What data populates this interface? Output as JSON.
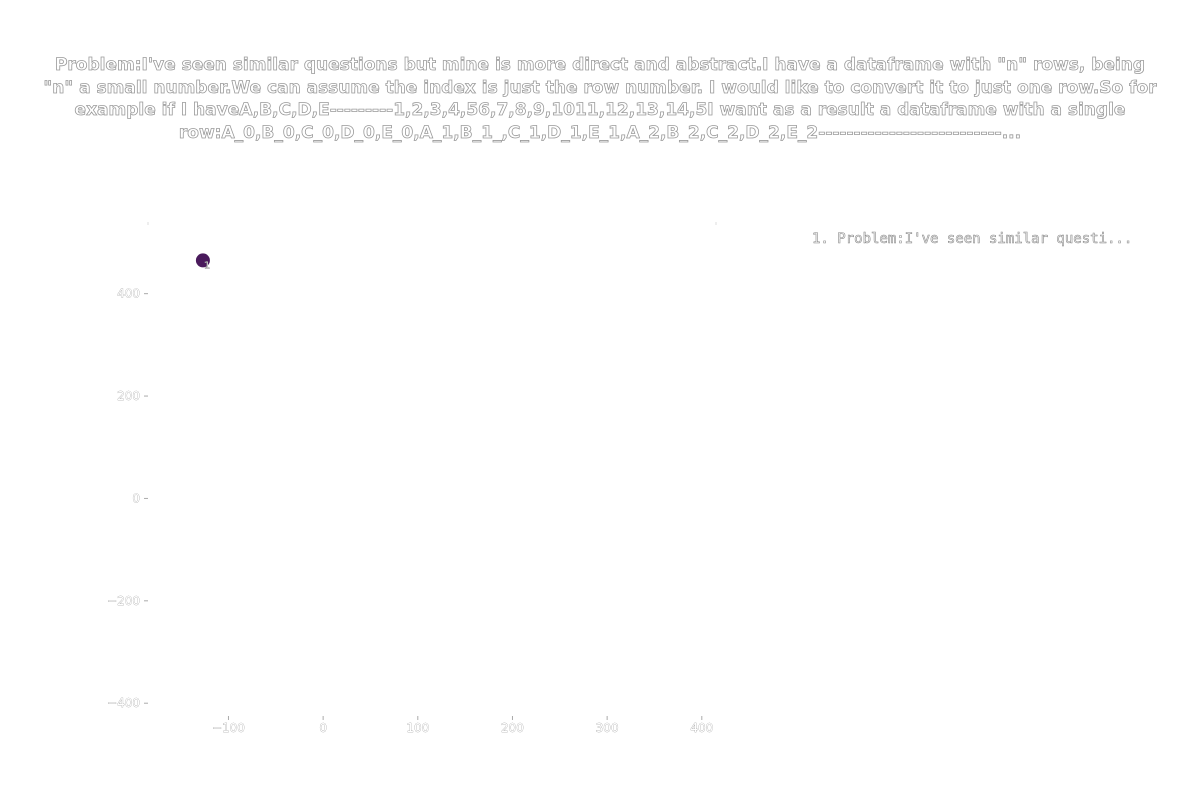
{
  "chart_data": {
    "type": "scatter",
    "title": "Problem:I've seen similar questions but mine is more direct and abstract.I have a dataframe with \"n\" rows, being \"n\" a small number.We can assume the index is just the row number. I would like to convert it to just one row.So for example if I haveA,B,C,D,E---------1,2,3,4,56,7,8,9,1011,12,13,14,5I want as a result a dataframe with a single row:A_0,B_0,C_0,D_0,E_0,A_1,B_1_,C_1,D_1,E_1,A_2,B_2,C_2,D_2,E_2--------------------------...",
    "xlabel": "",
    "ylabel": "",
    "xlim": [
      -185,
      415
    ],
    "ylim": [
      -425,
      540
    ],
    "x_ticks": [
      -100,
      0,
      100,
      200,
      300,
      400
    ],
    "x_tick_labels": [
      "−100",
      "0",
      "100",
      "200",
      "300",
      "400"
    ],
    "y_ticks": [
      -400,
      -200,
      0,
      200,
      400
    ],
    "y_tick_labels": [
      "−400",
      "−200",
      "0",
      "200",
      "400"
    ],
    "grid": false,
    "legend_position": "top-right",
    "series": [
      {
        "name": "1. Problem:I've seen similar questi...",
        "color": "#4a1a5c",
        "points": [
          {
            "x": -127,
            "y": 465,
            "label": "1"
          }
        ]
      }
    ]
  }
}
